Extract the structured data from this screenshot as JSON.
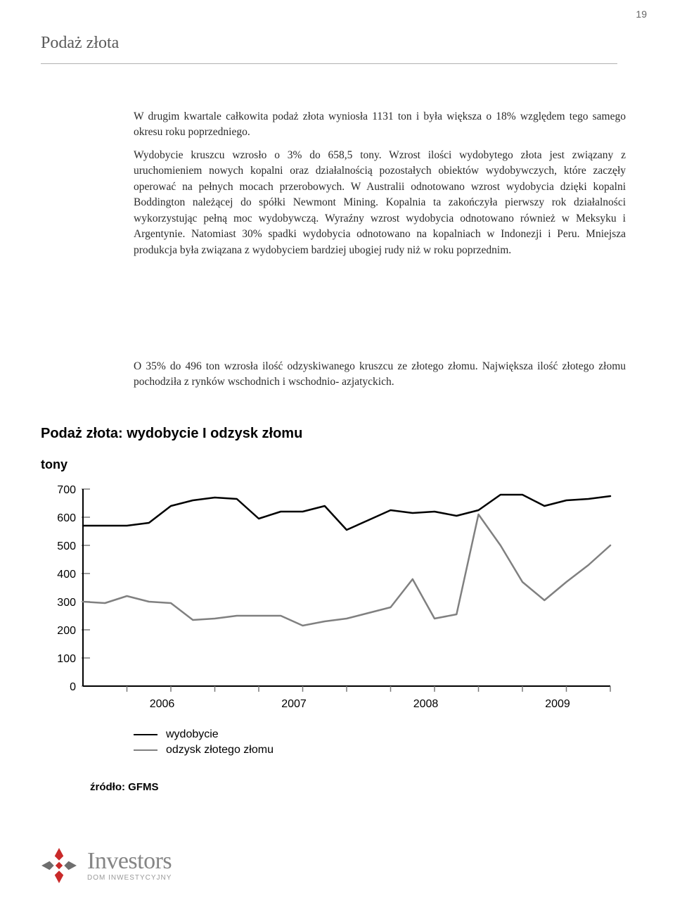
{
  "page_number": "19",
  "section_title": "Podaż złota",
  "paragraphs": {
    "p1": "W drugim kwartale całkowita podaż złota wyniosła 1131 ton i była większa o 18% względem tego samego okresu roku poprzedniego.",
    "p2": "Wydobycie kruszcu wzrosło o 3% do 658,5 tony. Wzrost ilości wydobytego złota jest związany z uruchomieniem nowych kopalni oraz działalnością pozostałych obiektów wydobywczych, które zaczęły operować na pełnych mocach przerobowych. W Australii odnotowano wzrost wydobycia dzięki kopalni Boddington należącej do spółki Newmont Mining. Kopalnia ta zakończyła pierwszy rok działalności wykorzystując pełną moc wydobywczą. Wyraźny wzrost wydobycia odnotowano również w Meksyku i Argentynie. Natomiast 30% spadki wydobycia odnotowano na kopalniach w Indonezji i Peru. Mniejsza produkcja była związana z wydobyciem bardziej ubogiej rudy niż w roku poprzednim.",
    "p3": "O 35% do 496 ton wzrosła ilość odzyskiwanego kruszcu ze złotego złomu. Największa ilość złotego złomu pochodziła z rynków wschodnich i wschodnio- azjatyckich."
  },
  "chart": {
    "type": "line",
    "title": "Podaż złota: wydobycie I odzysk złomu",
    "ylabel": "tony",
    "ylim": [
      0,
      700
    ],
    "ytick_step": 100,
    "yticks": [
      0,
      100,
      200,
      300,
      400,
      500,
      600,
      700
    ],
    "x_major_labels": [
      "2006",
      "2007",
      "2008",
      "2009"
    ],
    "background_color": "#ffffff",
    "axis_color": "#000000",
    "tick_color": "#7a7a7a",
    "grid": false,
    "line_width": 2.5,
    "series": [
      {
        "name": "wydobycie",
        "color": "#000000",
        "values": [
          570,
          570,
          570,
          580,
          640,
          660,
          670,
          665,
          595,
          620,
          620,
          640,
          555,
          590,
          625,
          615,
          620,
          605,
          625,
          680,
          680,
          640,
          660,
          665,
          675
        ]
      },
      {
        "name": "odzysk złotego złomu",
        "color": "#808080",
        "values": [
          300,
          295,
          320,
          300,
          295,
          235,
          240,
          250,
          250,
          250,
          215,
          230,
          240,
          260,
          280,
          380,
          240,
          255,
          610,
          500,
          370,
          305,
          370,
          430,
          500
        ]
      }
    ],
    "legend_labels": {
      "s0": "wydobycie",
      "s1": "odzysk złotego złomu"
    },
    "source": "źródło: GFMS",
    "label_fontsize": 18,
    "tick_fontsize": 16,
    "title_fontsize": 20
  },
  "logo": {
    "main": "Investors",
    "sub": "DOM INWESTYCYJNY",
    "mark_color_primary": "#c92a2a",
    "mark_color_secondary": "#6e6e6e"
  }
}
